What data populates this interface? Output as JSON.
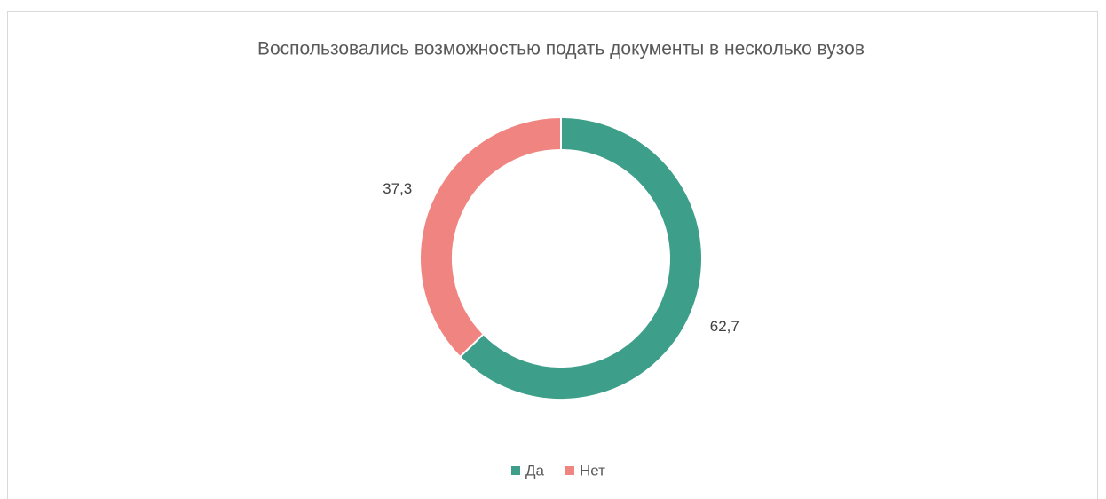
{
  "chart_data": {
    "type": "donut",
    "title": "Воспользовались возможностью подать документы в несколько вузов",
    "categories": [
      "Да",
      "Нет"
    ],
    "values": [
      62.7,
      37.3
    ],
    "value_labels": [
      "62,7",
      "37,3"
    ],
    "colors": [
      "#3d9e8a",
      "#f08481"
    ],
    "legend": "bottom"
  }
}
